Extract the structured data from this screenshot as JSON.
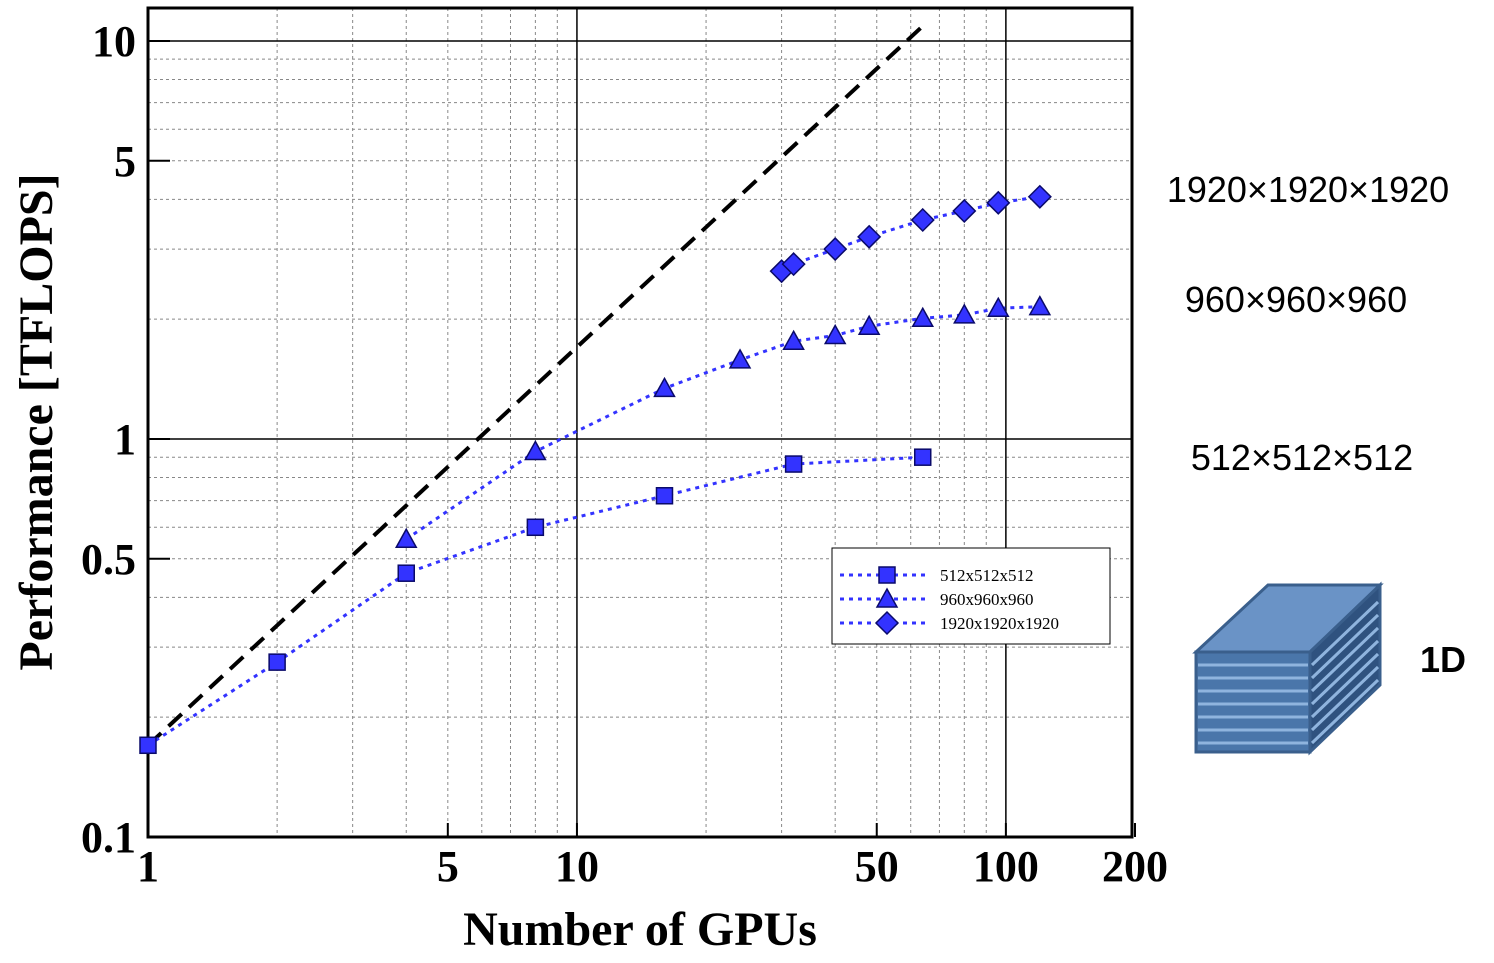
{
  "chart_data": {
    "type": "line",
    "x_label": "Number of GPUs",
    "y_label": "Performance [TFLOPS]",
    "xscale": "log",
    "yscale": "log",
    "grid": true,
    "xlim": [
      1,
      200
    ],
    "ylim": [
      0.1,
      12.1
    ],
    "xticks": [
      1,
      5,
      10,
      50,
      100,
      200
    ],
    "yticks": [
      0.1,
      0.5,
      1,
      5,
      10
    ],
    "xminor_ticks": [
      2,
      3,
      4,
      5,
      6,
      7,
      8,
      9,
      20,
      30,
      40,
      50,
      60,
      70,
      80,
      90
    ],
    "yminor_ticks": [
      0.2,
      0.3,
      0.4,
      0.5,
      0.6,
      0.7,
      0.8,
      0.9,
      2,
      3,
      4,
      5,
      6,
      7,
      8,
      9
    ],
    "xmajor_grid": [
      10,
      100
    ],
    "ymajor_grid": [
      1,
      10
    ],
    "reference_line": {
      "x": [
        1,
        64
      ],
      "values": [
        0.17,
        10.9
      ],
      "color": "#000000"
    },
    "series": [
      {
        "name": "512x512x512",
        "marker": "square",
        "color": "#3333ff",
        "x": [
          1,
          2,
          4,
          8,
          16,
          32,
          64
        ],
        "values": [
          0.17,
          0.275,
          0.46,
          0.6,
          0.72,
          0.865,
          0.9
        ]
      },
      {
        "name": "960x960x960",
        "marker": "triangle",
        "color": "#3333ff",
        "x": [
          4,
          8,
          16,
          24,
          32,
          40,
          48,
          64,
          80,
          96,
          120
        ],
        "values": [
          0.56,
          0.93,
          1.34,
          1.58,
          1.76,
          1.82,
          1.92,
          2.01,
          2.05,
          2.13,
          2.15
        ]
      },
      {
        "name": "1920x1920x1920",
        "marker": "diamond",
        "color": "#3333ff",
        "x": [
          30,
          32,
          40,
          48,
          64,
          80,
          96,
          120
        ],
        "values": [
          2.64,
          2.75,
          3.0,
          3.22,
          3.55,
          3.74,
          3.92,
          4.06
        ]
      }
    ],
    "annotations": [
      "1920×1920×1920",
      "960×960×960",
      "512×512×512",
      "1D"
    ]
  }
}
